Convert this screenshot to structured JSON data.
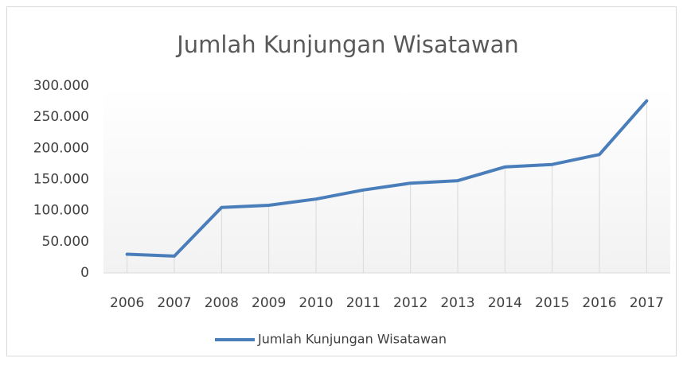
{
  "chart_data": {
    "type": "line",
    "title": "Jumlah Kunjungan Wisatawan",
    "categories": [
      "2006",
      "2007",
      "2008",
      "2009",
      "2010",
      "2011",
      "2012",
      "2013",
      "2014",
      "2015",
      "2016",
      "2017"
    ],
    "series": [
      {
        "name": "Jumlah Kunjungan Wisatawan",
        "color": "#4a7ebb",
        "values": [
          30000,
          27000,
          105000,
          108500,
          118500,
          133000,
          144000,
          148000,
          170000,
          174000,
          190000,
          276000
        ]
      }
    ],
    "ylim": [
      0,
      300000
    ],
    "yticks": [
      0,
      {
        "value": 50000,
        "label": "50.000"
      },
      {
        "value": 100000,
        "label": "100.000"
      },
      {
        "value": 150000,
        "label": "150.000"
      },
      {
        "value": 200000,
        "label": "200.000"
      },
      {
        "value": 250000,
        "label": "250.000"
      },
      {
        "value": 300000,
        "label": "300.000"
      }
    ],
    "drop_lines": true,
    "legend": "bottom"
  }
}
